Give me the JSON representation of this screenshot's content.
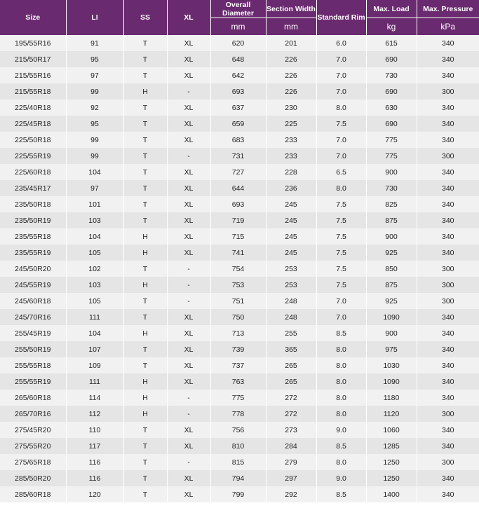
{
  "header": {
    "size": "Size",
    "li": "LI",
    "ss": "SS",
    "xl": "XL",
    "overall_diameter": {
      "label": "Overall Diameter",
      "unit": "mm"
    },
    "section_width": {
      "label": "Section Width",
      "unit": "mm"
    },
    "standard_rim": "Standard Rim",
    "max_load": {
      "label": "Max. Load",
      "unit": "kg"
    },
    "max_pressure": {
      "label": "Max. Pressure",
      "unit": "kPa"
    }
  },
  "rows": [
    [
      "195/55R16",
      "91",
      "T",
      "XL",
      "620",
      "201",
      "6.0",
      "615",
      "340"
    ],
    [
      "215/50R17",
      "95",
      "T",
      "XL",
      "648",
      "226",
      "7.0",
      "690",
      "340"
    ],
    [
      "215/55R16",
      "97",
      "T",
      "XL",
      "642",
      "226",
      "7.0",
      "730",
      "340"
    ],
    [
      "215/55R18",
      "99",
      "H",
      "-",
      "693",
      "226",
      "7.0",
      "690",
      "300"
    ],
    [
      "225/40R18",
      "92",
      "T",
      "XL",
      "637",
      "230",
      "8.0",
      "630",
      "340"
    ],
    [
      "225/45R18",
      "95",
      "T",
      "XL",
      "659",
      "225",
      "7.5",
      "690",
      "340"
    ],
    [
      "225/50R18",
      "99",
      "T",
      "XL",
      "683",
      "233",
      "7.0",
      "775",
      "340"
    ],
    [
      "225/55R19",
      "99",
      "T",
      "-",
      "731",
      "233",
      "7.0",
      "775",
      "300"
    ],
    [
      "225/60R18",
      "104",
      "T",
      "XL",
      "727",
      "228",
      "6.5",
      "900",
      "340"
    ],
    [
      "235/45R17",
      "97",
      "T",
      "XL",
      "644",
      "236",
      "8.0",
      "730",
      "340"
    ],
    [
      "235/50R18",
      "101",
      "T",
      "XL",
      "693",
      "245",
      "7.5",
      "825",
      "340"
    ],
    [
      "235/50R19",
      "103",
      "T",
      "XL",
      "719",
      "245",
      "7.5",
      "875",
      "340"
    ],
    [
      "235/55R18",
      "104",
      "H",
      "XL",
      "715",
      "245",
      "7.5",
      "900",
      "340"
    ],
    [
      "235/55R19",
      "105",
      "H",
      "XL",
      "741",
      "245",
      "7.5",
      "925",
      "340"
    ],
    [
      "245/50R20",
      "102",
      "T",
      "-",
      "754",
      "253",
      "7.5",
      "850",
      "300"
    ],
    [
      "245/55R19",
      "103",
      "H",
      "-",
      "753",
      "253",
      "7.5",
      "875",
      "300"
    ],
    [
      "245/60R18",
      "105",
      "T",
      "-",
      "751",
      "248",
      "7.0",
      "925",
      "300"
    ],
    [
      "245/70R16",
      "111",
      "T",
      "XL",
      "750",
      "248",
      "7.0",
      "1090",
      "340"
    ],
    [
      "255/45R19",
      "104",
      "H",
      "XL",
      "713",
      "255",
      "8.5",
      "900",
      "340"
    ],
    [
      "255/50R19",
      "107",
      "T",
      "XL",
      "739",
      "365",
      "8.0",
      "975",
      "340"
    ],
    [
      "255/55R18",
      "109",
      "T",
      "XL",
      "737",
      "265",
      "8.0",
      "1030",
      "340"
    ],
    [
      "255/55R19",
      "111",
      "H",
      "XL",
      "763",
      "265",
      "8.0",
      "1090",
      "340"
    ],
    [
      "265/60R18",
      "114",
      "H",
      "-",
      "775",
      "272",
      "8.0",
      "1180",
      "340"
    ],
    [
      "265/70R16",
      "112",
      "H",
      "-",
      "778",
      "272",
      "8.0",
      "1120",
      "300"
    ],
    [
      "275/45R20",
      "110",
      "T",
      "XL",
      "756",
      "273",
      "9.0",
      "1060",
      "340"
    ],
    [
      "275/55R20",
      "117",
      "T",
      "XL",
      "810",
      "284",
      "8.5",
      "1285",
      "340"
    ],
    [
      "275/65R18",
      "116",
      "T",
      "-",
      "815",
      "279",
      "8.0",
      "1250",
      "300"
    ],
    [
      "285/50R20",
      "116",
      "T",
      "XL",
      "794",
      "297",
      "9.0",
      "1250",
      "340"
    ],
    [
      "285/60R18",
      "120",
      "T",
      "XL",
      "799",
      "292",
      "8.5",
      "1400",
      "340"
    ]
  ]
}
